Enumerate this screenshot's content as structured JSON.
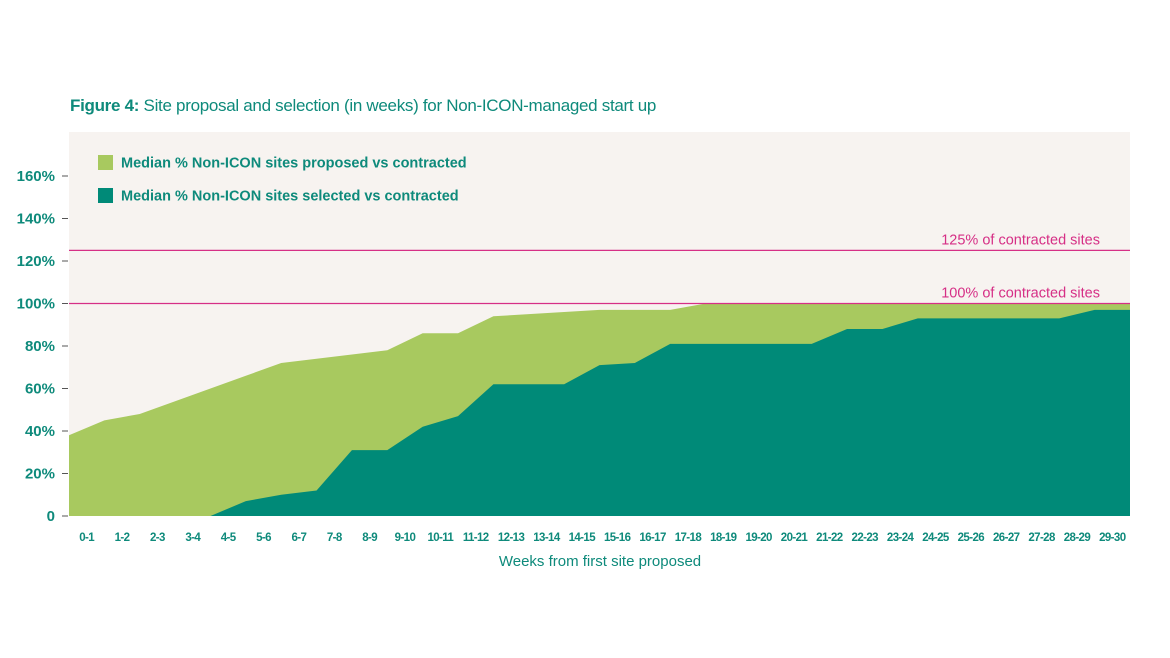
{
  "figure": {
    "label": "Figure 4:",
    "title": "Site proposal and selection (in weeks) for Non-ICON-managed start up"
  },
  "colors": {
    "proposed": "#a8c95f",
    "selected": "#008a78",
    "reference": "#d62f86",
    "plot_background": "#f7f3f0",
    "text": "#0e8a7b"
  },
  "chart_data": {
    "type": "area",
    "title": "Site proposal and selection (in weeks) for Non-ICON-managed start up",
    "xlabel": "Weeks from first site proposed",
    "ylabel": "",
    "ylim": [
      0,
      170
    ],
    "yticks": [
      0,
      20,
      40,
      60,
      80,
      100,
      120,
      140,
      160
    ],
    "ytick_labels": [
      "0",
      "20%",
      "40%",
      "60%",
      "80%",
      "100%",
      "120%",
      "140%",
      "160%"
    ],
    "categories": [
      "0-1",
      "1-2",
      "2-3",
      "3-4",
      "4-5",
      "5-6",
      "6-7",
      "7-8",
      "8-9",
      "9-10",
      "10-11",
      "11-12",
      "12-13",
      "13-14",
      "14-15",
      "15-16",
      "16-17",
      "17-18",
      "18-19",
      "19-20",
      "20-21",
      "21-22",
      "22-23",
      "23-24",
      "24-25",
      "25-26",
      "26-27",
      "27-28",
      "28-29",
      "29-30"
    ],
    "x": [
      0,
      1,
      2,
      3,
      4,
      5,
      6,
      7,
      8,
      9,
      10,
      11,
      12,
      13,
      14,
      15,
      16,
      17,
      18,
      19,
      20,
      21,
      22,
      23,
      24,
      25,
      26,
      27,
      28,
      29,
      30
    ],
    "series": [
      {
        "name": "Median % Non-ICON sites proposed vs contracted",
        "color": "#a8c95f",
        "values": [
          38,
          45,
          48,
          54,
          60,
          66,
          72,
          74,
          76,
          78,
          86,
          86,
          94,
          95,
          96,
          97,
          97,
          97,
          100,
          100,
          100,
          100,
          100,
          100,
          100,
          100,
          100,
          100,
          100,
          100,
          100
        ]
      },
      {
        "name": "Median % Non-ICON sites selected vs contracted",
        "color": "#008a78",
        "values": [
          0,
          0,
          0,
          0,
          0,
          7,
          10,
          12,
          31,
          31,
          42,
          47,
          62,
          62,
          62,
          71,
          72,
          81,
          81,
          81,
          81,
          81,
          88,
          88,
          93,
          93,
          93,
          93,
          93,
          97,
          97
        ]
      }
    ],
    "reference_lines": [
      {
        "value": 125,
        "label": "125% of contracted sites"
      },
      {
        "value": 100,
        "label": "100% of contracted sites"
      }
    ],
    "legend_position": "top-left",
    "grid": false
  }
}
